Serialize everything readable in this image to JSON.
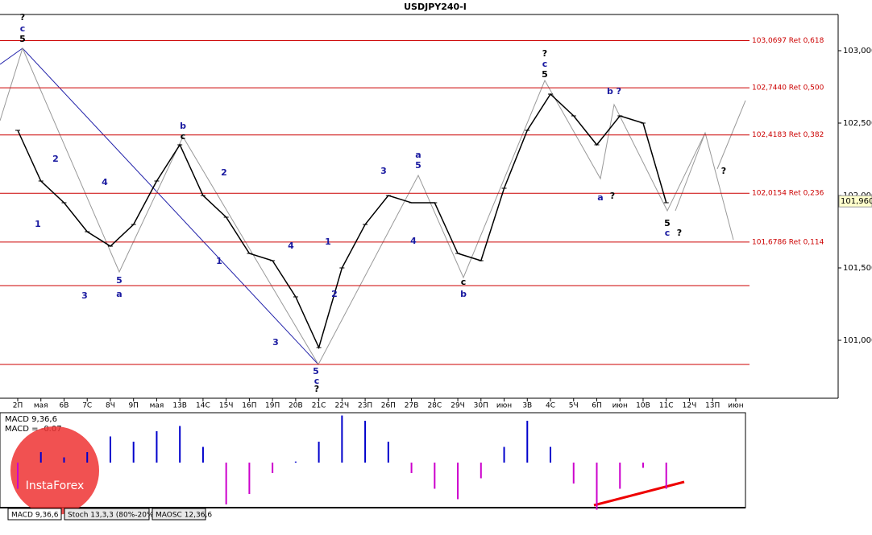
{
  "chart_data": [
    {
      "type": "line",
      "title": "USDJPY240-I",
      "categories": [
        "2П",
        "мая",
        "6В",
        "7С",
        "8Ч",
        "9П",
        "мая",
        "13В",
        "14С",
        "15Ч",
        "16П",
        "19П",
        "20В",
        "21С",
        "22Ч",
        "23П",
        "26П",
        "27В",
        "28С",
        "29Ч",
        "30П",
        "июн",
        "3В",
        "4С",
        "5Ч",
        "6П",
        "июн",
        "10В",
        "11С",
        "12Ч",
        "13П",
        "июн"
      ],
      "values": [
        102.45,
        102.1,
        101.95,
        101.75,
        101.65,
        101.8,
        102.1,
        102.35,
        102.0,
        101.85,
        101.6,
        101.55,
        101.3,
        100.95,
        101.5,
        101.8,
        102.0,
        101.95,
        101.95,
        101.6,
        101.55,
        102.05,
        102.45,
        102.7,
        102.55,
        102.35,
        102.55,
        102.5,
        101.95,
        null,
        null,
        null
      ],
      "color": "#000000",
      "ylim": [
        100.6,
        103.25
      ],
      "yticks": [
        {
          "value": 101,
          "label": "101,000"
        },
        {
          "value": 101.5,
          "label": "101,500"
        },
        {
          "value": 102,
          "label": "102,000"
        },
        {
          "value": 102.5,
          "label": "102,500"
        },
        {
          "value": 103,
          "label": "103,000"
        }
      ],
      "levels": [
        {
          "value": 103.0697,
          "label": "103,0697 Ret 0,618"
        },
        {
          "value": 102.744,
          "label": "102,7440 Ret 0,500"
        },
        {
          "value": 102.4183,
          "label": "102,4183 Ret 0,382"
        },
        {
          "value": 102.0154,
          "label": "102,0154 Ret 0,236"
        },
        {
          "value": 101.6786,
          "label": "101,6786 Ret 0,114"
        },
        {
          "value": 101.378
        },
        {
          "value": 100.833
        }
      ],
      "level_color": "#cc0000",
      "last_price": {
        "value": 101.96,
        "label": "101,960"
      },
      "annotations": [
        "?",
        "c",
        "5",
        "2",
        "1",
        "3",
        "4",
        "5",
        "a",
        "b",
        "c",
        "2",
        "1",
        "4",
        "3",
        "5",
        "c",
        "?",
        "1",
        "2",
        "3",
        "4",
        "a",
        "5",
        "b",
        "c",
        "?",
        "c",
        "5",
        "b ?",
        "a",
        "?",
        "5",
        "c",
        "?",
        "?"
      ]
    },
    {
      "type": "bar",
      "title": "MACD 9,36,6",
      "caption": "MACD = -0.07",
      "values": [
        -0.5,
        0.2,
        0.1,
        0.2,
        0.5,
        0.4,
        0.6,
        0.7,
        0.3,
        -0.8,
        -0.6,
        -0.2,
        0.02,
        0.4,
        0.9,
        0.8,
        0.4,
        -0.2,
        -0.5,
        -0.7,
        -0.3,
        0.3,
        0.8,
        0.3,
        -0.4,
        -0.9,
        -0.5,
        -0.1,
        -0.5
      ],
      "color": "#cc00cc",
      "ylim": [
        -1,
        1
      ]
    }
  ],
  "tabs": [
    "MACD 9,36,6",
    "Stoch 13,3,3 (80%-20%)",
    "MAOSC 12,36,6"
  ],
  "logo": "InstaForex"
}
